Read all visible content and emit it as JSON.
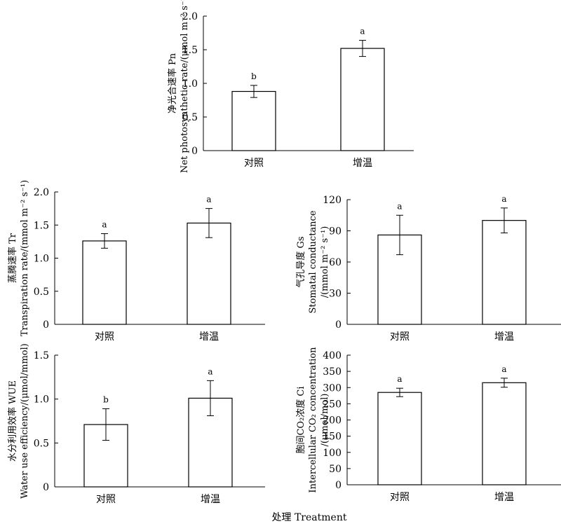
{
  "figure": {
    "xlabel": "处理 Treatment"
  },
  "chart_data": [
    {
      "type": "bar",
      "categories": [
        "对照",
        "增温"
      ],
      "values": [
        0.88,
        1.52
      ],
      "errors": [
        0.09,
        0.12
      ],
      "labels": [
        "b",
        "a"
      ],
      "ylabel_lines": [
        "净光合速率 Pn",
        "Net photosynthetic rate/(μmol m⁻² s⁻¹)"
      ],
      "ylim": [
        0,
        2.0
      ],
      "yticks": [
        "0",
        "0.5",
        "1.0",
        "1.5",
        "2.0"
      ]
    },
    {
      "type": "bar",
      "categories": [
        "对照",
        "增温"
      ],
      "values": [
        1.26,
        1.53
      ],
      "errors": [
        0.11,
        0.22
      ],
      "labels": [
        "a",
        "a"
      ],
      "ylabel_lines": [
        "蒸腾速率 Tr",
        "Transpiration rate/(mmol m⁻² s⁻¹)"
      ],
      "ylim": [
        0,
        2.0
      ],
      "yticks": [
        "0",
        "0.5",
        "1.0",
        "1.5",
        "2.0"
      ]
    },
    {
      "type": "bar",
      "categories": [
        "对照",
        "增温"
      ],
      "values": [
        86,
        100
      ],
      "errors": [
        19,
        12
      ],
      "labels": [
        "a",
        "a"
      ],
      "ylabel_lines": [
        "气孔导度 Gs",
        "Stomatal conductance",
        "/(mmol m⁻² s⁻¹)"
      ],
      "ylim": [
        0,
        120
      ],
      "yticks": [
        "0",
        "30",
        "60",
        "90",
        "120"
      ]
    },
    {
      "type": "bar",
      "categories": [
        "对照",
        "增温"
      ],
      "values": [
        0.71,
        1.01
      ],
      "errors": [
        0.18,
        0.2
      ],
      "labels": [
        "b",
        "a"
      ],
      "ylabel_lines": [
        "水分利用效率 WUE",
        "Water use efficiency/(μmol/mmol)"
      ],
      "ylim": [
        0,
        1.5
      ],
      "yticks": [
        "0",
        "0.5",
        "1.0",
        "1.5"
      ]
    },
    {
      "type": "bar",
      "categories": [
        "对照",
        "增温"
      ],
      "values": [
        285,
        315
      ],
      "errors": [
        13,
        14
      ],
      "labels": [
        "a",
        "a"
      ],
      "ylabel_lines": [
        "胞间CO₂浓度 Ci",
        "Intercellular CO₂ concentration",
        "/(μmol/mol)"
      ],
      "ylim": [
        0,
        400
      ],
      "yticks": [
        "0",
        "50",
        "100",
        "150",
        "200",
        "250",
        "300",
        "350",
        "400"
      ]
    }
  ]
}
